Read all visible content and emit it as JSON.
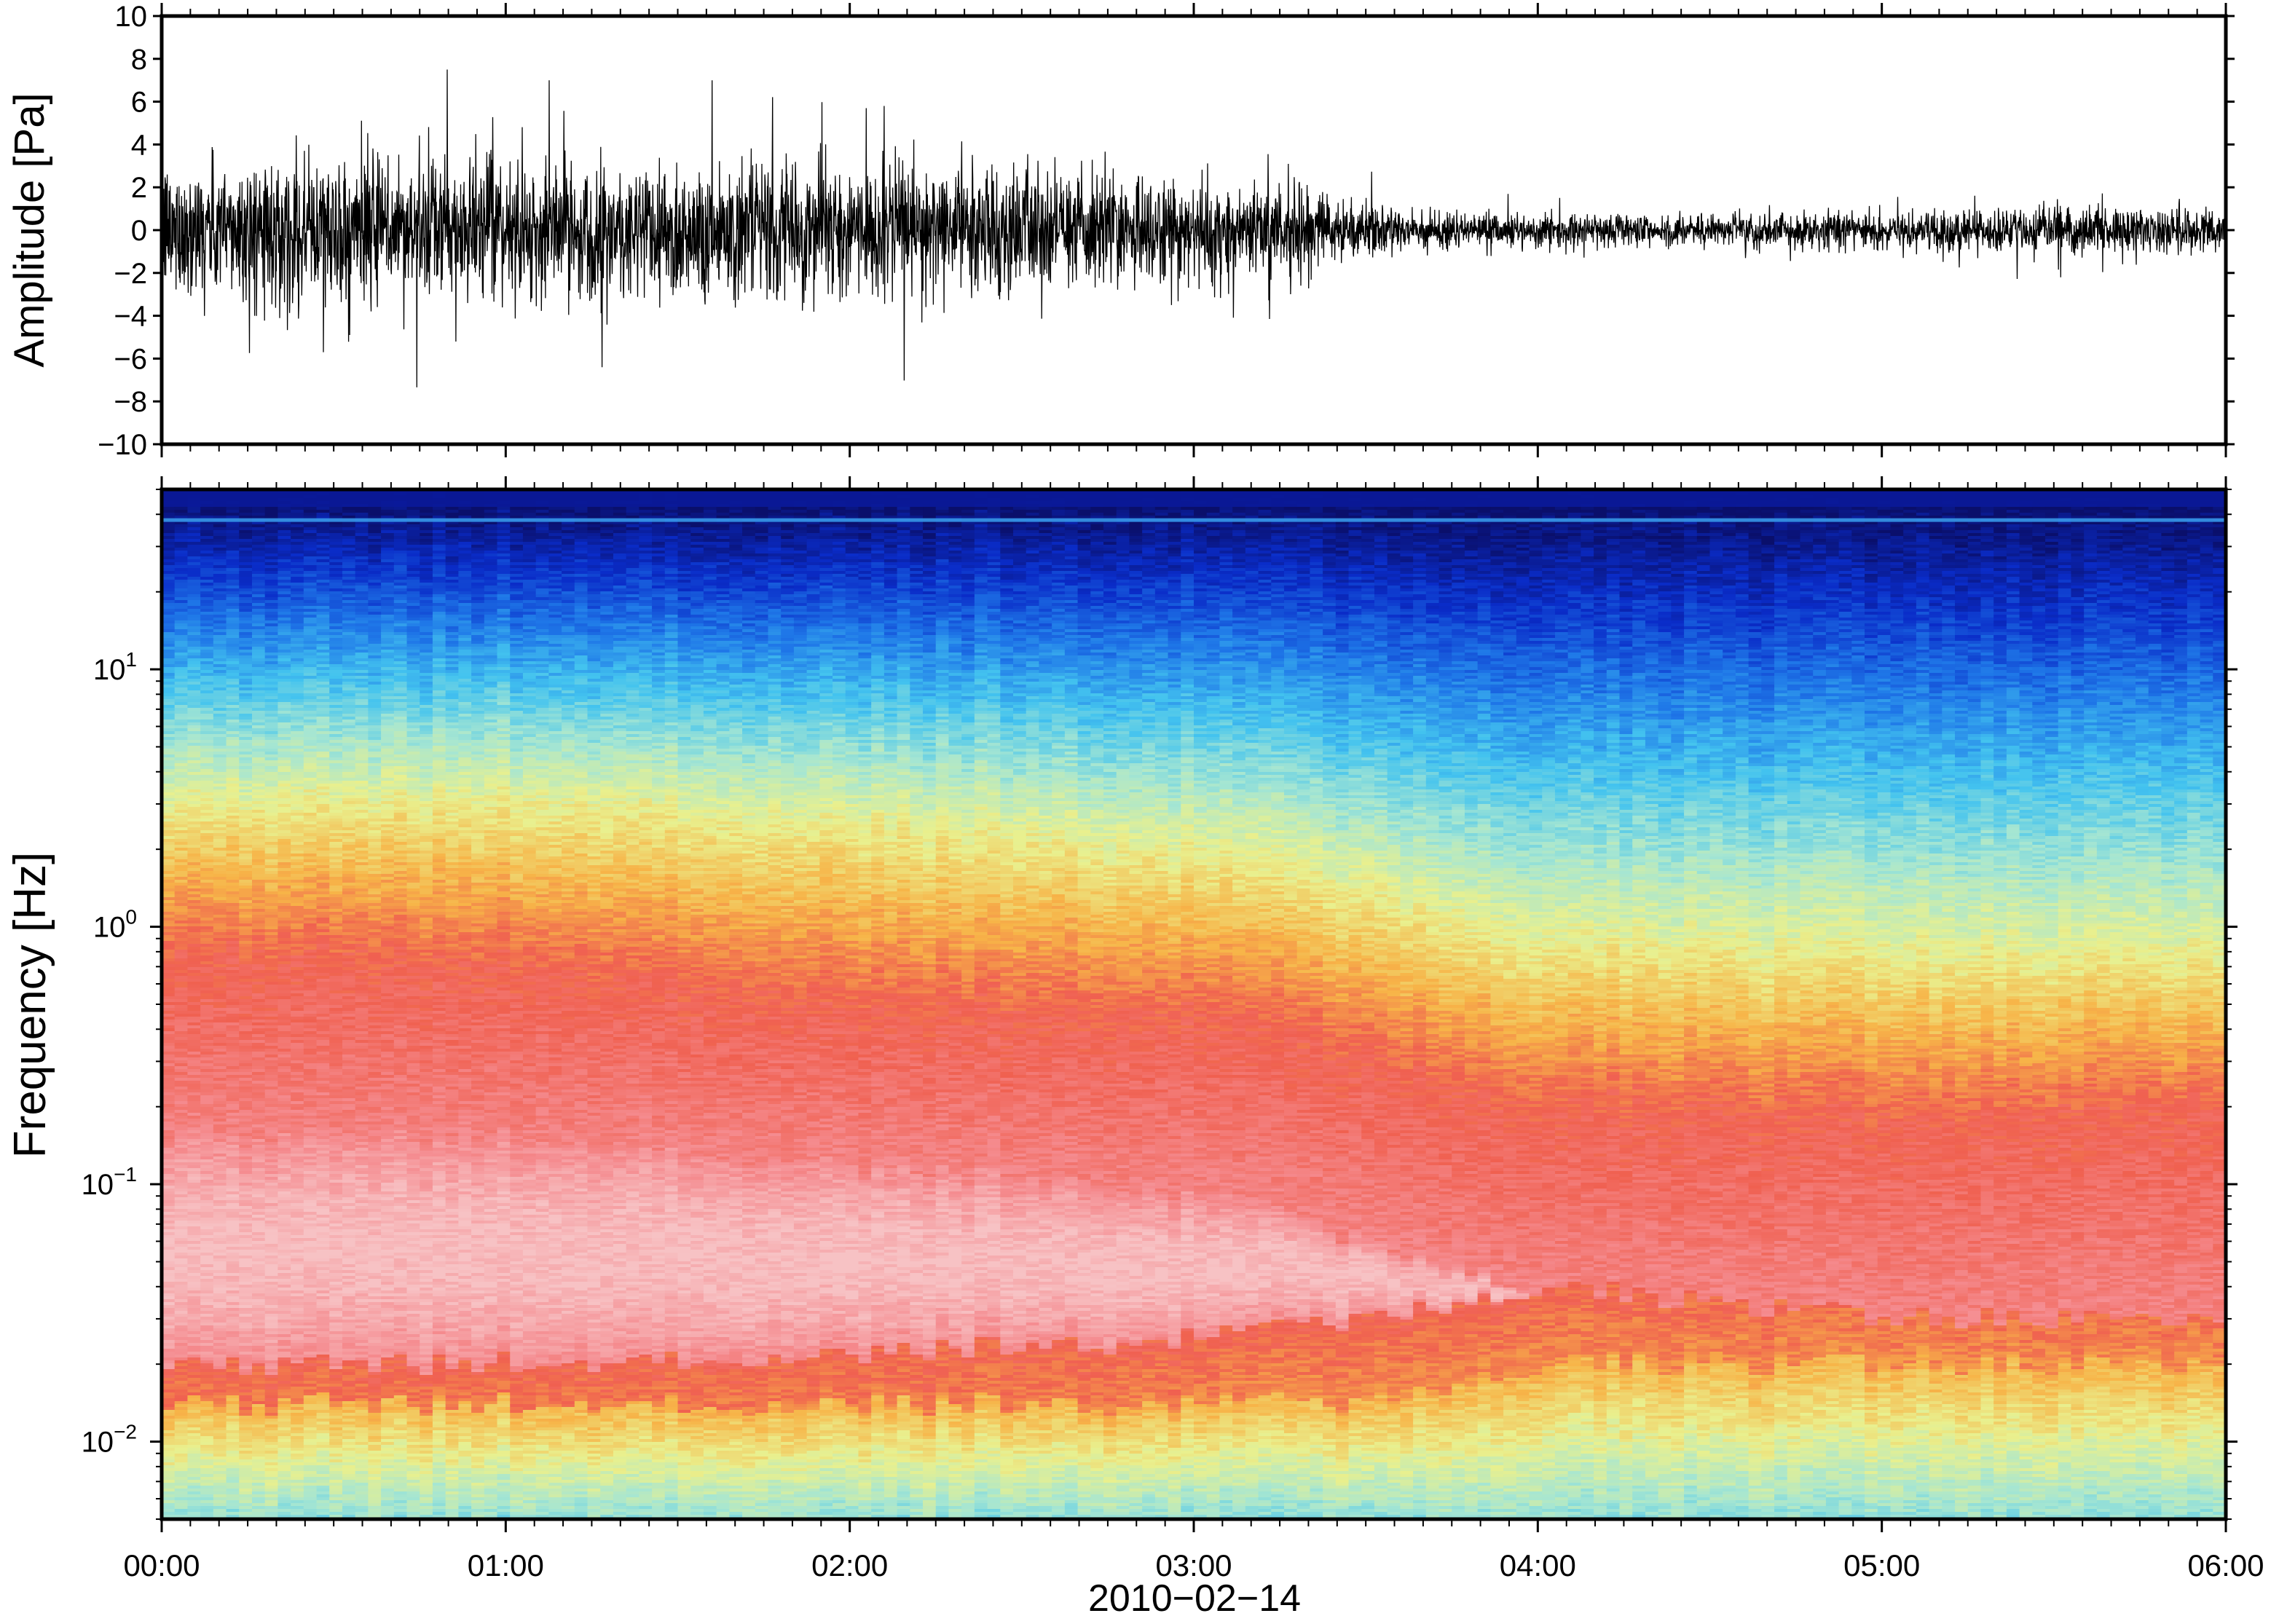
{
  "chart_data": [
    {
      "type": "line",
      "panel": "waveform",
      "ylabel": "Amplitude [Pa]",
      "ylim": [
        -10,
        10
      ],
      "yticks": [
        -10,
        -8,
        -6,
        -4,
        -2,
        0,
        2,
        4,
        6,
        8,
        10
      ],
      "ytick_labels": [
        "−10",
        "−8",
        "−6",
        "−4",
        "−2",
        "0",
        "2",
        "4",
        "6",
        "8",
        "10"
      ],
      "x_range_hours": [
        0,
        6
      ],
      "line_color": "#000000",
      "envelope": {
        "hours": [
          0.0,
          0.5,
          1.0,
          1.5,
          2.0,
          2.5,
          3.0,
          3.3,
          3.5,
          4.0,
          4.5,
          5.0,
          5.5,
          6.0
        ],
        "typical_abs_pa": [
          2.0,
          2.3,
          2.0,
          2.2,
          2.0,
          1.9,
          1.6,
          1.4,
          0.7,
          0.5,
          0.5,
          0.6,
          0.7,
          0.7
        ]
      },
      "peaks": [
        {
          "hour": 0.83,
          "value": 7.5
        },
        {
          "hour": 1.28,
          "value": -6.4
        },
        {
          "hour": 1.6,
          "value": 7.0
        },
        {
          "hour": 0.47,
          "value": -5.7
        },
        {
          "hour": 2.1,
          "value": 5.8
        },
        {
          "hour": 5.52,
          "value": -2.2
        }
      ]
    },
    {
      "type": "heatmap",
      "panel": "spectrogram",
      "ylabel": "Frequency [Hz]",
      "yscale": "log",
      "ylim": [
        0.005,
        50
      ],
      "yticks": [
        {
          "value": 0.01,
          "base": "10",
          "exp": "−2"
        },
        {
          "value": 0.1,
          "base": "10",
          "exp": "−1"
        },
        {
          "value": 1,
          "base": "10",
          "exp": "0"
        },
        {
          "value": 10,
          "base": "10",
          "exp": "1"
        }
      ],
      "colormap": [
        "#0a0f6b",
        "#0a2cc8",
        "#1f78e8",
        "#43c3ef",
        "#a6e6d2",
        "#e9f08e",
        "#f7b448",
        "#f06050",
        "#f58c90",
        "#f7c2c4"
      ],
      "time_axis": {
        "xlabel": "2010−02−14",
        "ticks": [
          "00:00",
          "01:00",
          "02:00",
          "03:00",
          "04:00",
          "05:00",
          "06:00"
        ],
        "tick_hours": [
          0,
          1,
          2,
          3,
          4,
          5,
          6
        ]
      },
      "boundaries": {
        "hours": [
          0.0,
          1.0,
          2.0,
          3.0,
          3.5,
          4.0,
          5.0,
          6.0
        ],
        "yellow_top_hz": [
          3.0,
          3.2,
          2.6,
          2.0,
          1.4,
          0.9,
          0.8,
          0.8
        ],
        "red_top_hz": [
          0.8,
          0.7,
          0.5,
          0.45,
          0.3,
          0.2,
          0.18,
          0.2
        ],
        "pink_top_hz": [
          0.15,
          0.15,
          0.12,
          0.09,
          0.06,
          0.04,
          0.03,
          0.03
        ],
        "pink_bottom_hz": [
          0.02,
          0.02,
          0.022,
          0.025,
          0.03,
          0.04,
          0.04,
          0.04
        ],
        "low_band_top_hz": [
          0.014,
          0.014,
          0.014,
          0.014,
          0.014,
          0.02,
          0.02,
          0.02
        ]
      },
      "tone_line_hz": 38
    }
  ]
}
